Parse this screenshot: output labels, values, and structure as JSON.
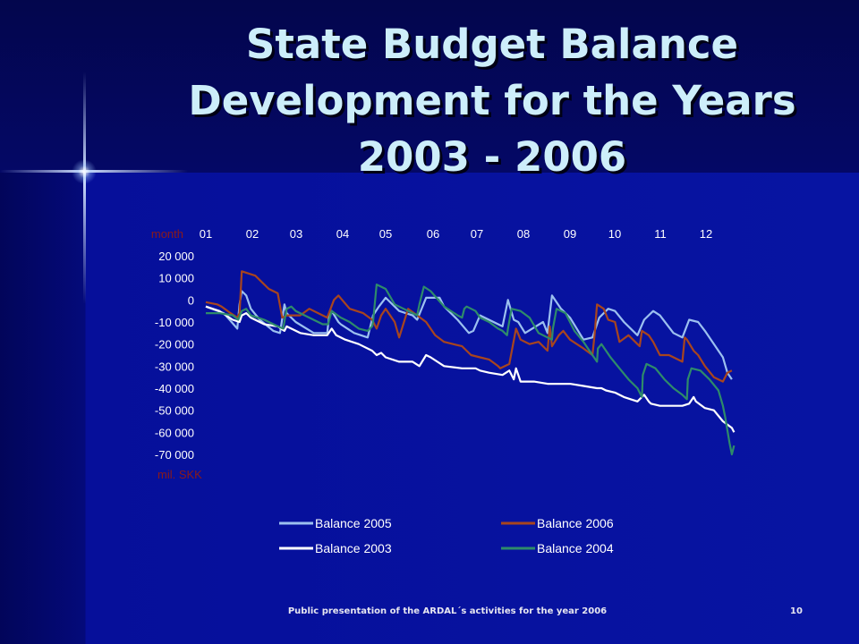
{
  "slide": {
    "title": "State Budget Balance Development for the Years 2003 - 2006",
    "footer": "Public presentation of the ARDAL´s activities for the year 2006",
    "page_number": "10"
  },
  "colors": {
    "background": "#07129f",
    "title_text": "#cdeefa",
    "axis_text": "#ffffff",
    "unit_text": "#8b1a1a"
  },
  "chart_data": {
    "type": "line",
    "month_label": "month",
    "unit_label": "mil. SKK",
    "months": [
      "01",
      "02",
      "03",
      "04",
      "05",
      "06",
      "07",
      "08",
      "09",
      "10",
      "11",
      "12"
    ],
    "y_ticks": [
      "20 000",
      "10 000",
      "0",
      "-10 000",
      "-20 000",
      "-30 000",
      "-40 000",
      "-50 000",
      "-60 000",
      "-70 000"
    ],
    "ylim": [
      -70000,
      20000
    ],
    "xlim": [
      0,
      12
    ],
    "grid": false,
    "legend_position": "bottom",
    "series": [
      {
        "name": "Balance 2005",
        "color": "#9cc0f0",
        "x": [
          0,
          0.4,
          0.7,
          0.75,
          0.8,
          0.9,
          1.0,
          1.2,
          1.5,
          1.65,
          1.75,
          1.8,
          2.0,
          2.4,
          2.7,
          2.75,
          2.8,
          2.95,
          3.0,
          3.3,
          3.6,
          3.72,
          3.85,
          4.0,
          4.3,
          4.6,
          4.7,
          4.9,
          5.2,
          5.3,
          5.5,
          5.6,
          5.85,
          5.95,
          6.1,
          6.4,
          6.6,
          6.72,
          6.85,
          6.95,
          7.1,
          7.5,
          7.6,
          7.7,
          7.9,
          8.1,
          8.4,
          8.6,
          8.75,
          8.95,
          9.1,
          9.3,
          9.6,
          9.75,
          9.95,
          10.1,
          10.4,
          10.6,
          10.75,
          10.95,
          11.1,
          11.5,
          11.6,
          11.7
        ],
        "y": [
          -3000,
          -6000,
          -13000,
          -2000,
          4000,
          2000,
          -4000,
          -9000,
          -14000,
          -15000,
          -2000,
          -6000,
          -10000,
          -15000,
          -15000,
          -6000,
          -5000,
          -10000,
          -11000,
          -15000,
          -17000,
          -7000,
          -3000,
          1000,
          -5000,
          -7000,
          -9000,
          1000,
          1000,
          -3000,
          -7000,
          -9000,
          -15000,
          -14000,
          -7000,
          -10000,
          -12000,
          0,
          -9000,
          -10000,
          -15000,
          -10000,
          -15000,
          2000,
          -4000,
          -8000,
          -18000,
          -17000,
          -8000,
          -4000,
          -5000,
          -10000,
          -16000,
          -9000,
          -5000,
          -7000,
          -15000,
          -17000,
          -9000,
          -10000,
          -14000,
          -26000,
          -33000,
          -36000
        ]
      },
      {
        "name": "Balance 2006",
        "color": "#a8451e",
        "x": [
          0,
          0.25,
          0.35,
          0.55,
          0.7,
          0.75,
          0.8,
          1.1,
          1.4,
          1.6,
          1.7,
          1.8,
          2.1,
          2.3,
          2.7,
          2.85,
          2.95,
          3.2,
          3.5,
          3.7,
          3.8,
          3.9,
          4.0,
          4.2,
          4.3,
          4.5,
          4.7,
          4.9,
          5.1,
          5.3,
          5.5,
          5.7,
          5.9,
          6.1,
          6.3,
          6.5,
          6.55,
          6.75,
          6.9,
          7.0,
          7.2,
          7.4,
          7.6,
          7.65,
          7.7,
          7.85,
          7.95,
          8.1,
          8.4,
          8.6,
          8.65,
          8.7,
          8.85,
          8.95,
          9.1,
          9.2,
          9.4,
          9.6,
          9.65,
          9.7,
          9.85,
          9.95,
          10.1,
          10.3,
          10.5,
          10.6,
          10.65,
          10.7,
          10.85,
          10.95,
          11.1,
          11.3,
          11.5,
          11.6,
          11.7
        ],
        "y": [
          -1000,
          -2000,
          -3000,
          -6000,
          -8000,
          -6000,
          13000,
          11000,
          5000,
          3000,
          -8000,
          -7000,
          -7000,
          -4000,
          -8000,
          0,
          2000,
          -4000,
          -6000,
          -9000,
          -13000,
          -7000,
          -4000,
          -10000,
          -17000,
          -4000,
          -7000,
          -10000,
          -16000,
          -19000,
          -20000,
          -21000,
          -25000,
          -26000,
          -27000,
          -30000,
          -31000,
          -29000,
          -13000,
          -18000,
          -20000,
          -19000,
          -23000,
          -12000,
          -21000,
          -16000,
          -14000,
          -18000,
          -22000,
          -25000,
          -15000,
          -2000,
          -4000,
          -9000,
          -10000,
          -19000,
          -16000,
          -20000,
          -21000,
          -14000,
          -16000,
          -19000,
          -25000,
          -25000,
          -27000,
          -28000,
          -17000,
          -18000,
          -23000,
          -25000,
          -30000,
          -35000,
          -37000,
          -33000,
          -32000
        ]
      },
      {
        "name": "Balance 2003",
        "color": "#ffffff",
        "x": [
          0,
          0.3,
          0.6,
          0.75,
          0.8,
          0.9,
          1.0,
          1.3,
          1.6,
          1.75,
          1.8,
          1.9,
          2.1,
          2.4,
          2.7,
          2.8,
          2.9,
          3.1,
          3.4,
          3.7,
          3.8,
          3.9,
          4.0,
          4.3,
          4.6,
          4.75,
          4.9,
          5.0,
          5.3,
          5.7,
          5.9,
          6.0,
          6.1,
          6.3,
          6.6,
          6.75,
          6.85,
          6.9,
          7.0,
          7.3,
          7.6,
          7.75,
          7.9,
          8.1,
          8.4,
          8.7,
          8.8,
          8.9,
          9.1,
          9.3,
          9.6,
          9.75,
          9.85,
          9.9,
          10.1,
          10.4,
          10.6,
          10.75,
          10.85,
          10.9,
          11.1,
          11.3,
          11.5,
          11.7,
          11.75
        ],
        "y": [
          -3000,
          -5000,
          -9000,
          -10000,
          -7000,
          -6000,
          -8000,
          -11000,
          -12000,
          -14000,
          -12000,
          -13000,
          -15000,
          -16000,
          -16000,
          -13000,
          -16000,
          -18000,
          -20000,
          -23000,
          -25000,
          -24000,
          -26000,
          -28000,
          -28000,
          -30000,
          -25000,
          -26000,
          -30000,
          -31000,
          -31000,
          -31000,
          -32000,
          -33000,
          -34000,
          -32000,
          -36000,
          -31000,
          -37000,
          -37000,
          -38000,
          -38000,
          -38000,
          -38000,
          -39000,
          -40000,
          -40000,
          -41000,
          -42000,
          -44000,
          -46000,
          -43000,
          -46000,
          -47000,
          -48000,
          -48000,
          -48000,
          -47000,
          -44000,
          -46000,
          -49000,
          -50000,
          -55000,
          -58000,
          -60000
        ]
      },
      {
        "name": "Balance 2004",
        "color": "#2e8b6a",
        "x": [
          0,
          0.3,
          0.6,
          0.72,
          0.8,
          0.9,
          1.0,
          1.3,
          1.6,
          1.72,
          1.8,
          1.9,
          2.0,
          2.3,
          2.6,
          2.72,
          2.8,
          3.0,
          3.2,
          3.4,
          3.6,
          3.7,
          3.72,
          3.8,
          4.0,
          4.2,
          4.5,
          4.7,
          4.75,
          4.85,
          5.0,
          5.3,
          5.6,
          5.7,
          5.75,
          5.8,
          5.9,
          6.0,
          6.1,
          6.3,
          6.5,
          6.6,
          6.7,
          6.72,
          6.8,
          7.0,
          7.2,
          7.4,
          7.6,
          7.7,
          7.72,
          7.8,
          8.0,
          8.2,
          8.4,
          8.6,
          8.7,
          8.72,
          8.8,
          9.0,
          9.2,
          9.4,
          9.6,
          9.7,
          9.72,
          9.8,
          10.0,
          10.2,
          10.4,
          10.6,
          10.7,
          10.72,
          10.8,
          11.0,
          11.2,
          11.4,
          11.5,
          11.55,
          11.6,
          11.65,
          11.7,
          11.75
        ],
        "y": [
          -6000,
          -6000,
          -7000,
          -9000,
          -5000,
          -4000,
          -7000,
          -9000,
          -12000,
          -13000,
          -4000,
          -3000,
          -5000,
          -8000,
          -11000,
          -11000,
          -5000,
          -8000,
          -10000,
          -13000,
          -14000,
          -12000,
          -10000,
          7000,
          5000,
          -2000,
          -5000,
          -7000,
          -2000,
          6000,
          4000,
          -3000,
          -7000,
          -8000,
          -4000,
          -3000,
          -4000,
          -5000,
          -8000,
          -10000,
          -13000,
          -14000,
          -16000,
          -13000,
          -4000,
          -5000,
          -8000,
          -15000,
          -17000,
          -18000,
          -13000,
          -4000,
          -6000,
          -14000,
          -19000,
          -25000,
          -28000,
          -22000,
          -20000,
          -26000,
          -31000,
          -36000,
          -40000,
          -44000,
          -34000,
          -29000,
          -31000,
          -36000,
          -40000,
          -43000,
          -45000,
          -36000,
          -31000,
          -32000,
          -36000,
          -41000,
          -48000,
          -53000,
          -59000,
          -65000,
          -70000,
          -66000
        ]
      }
    ]
  }
}
